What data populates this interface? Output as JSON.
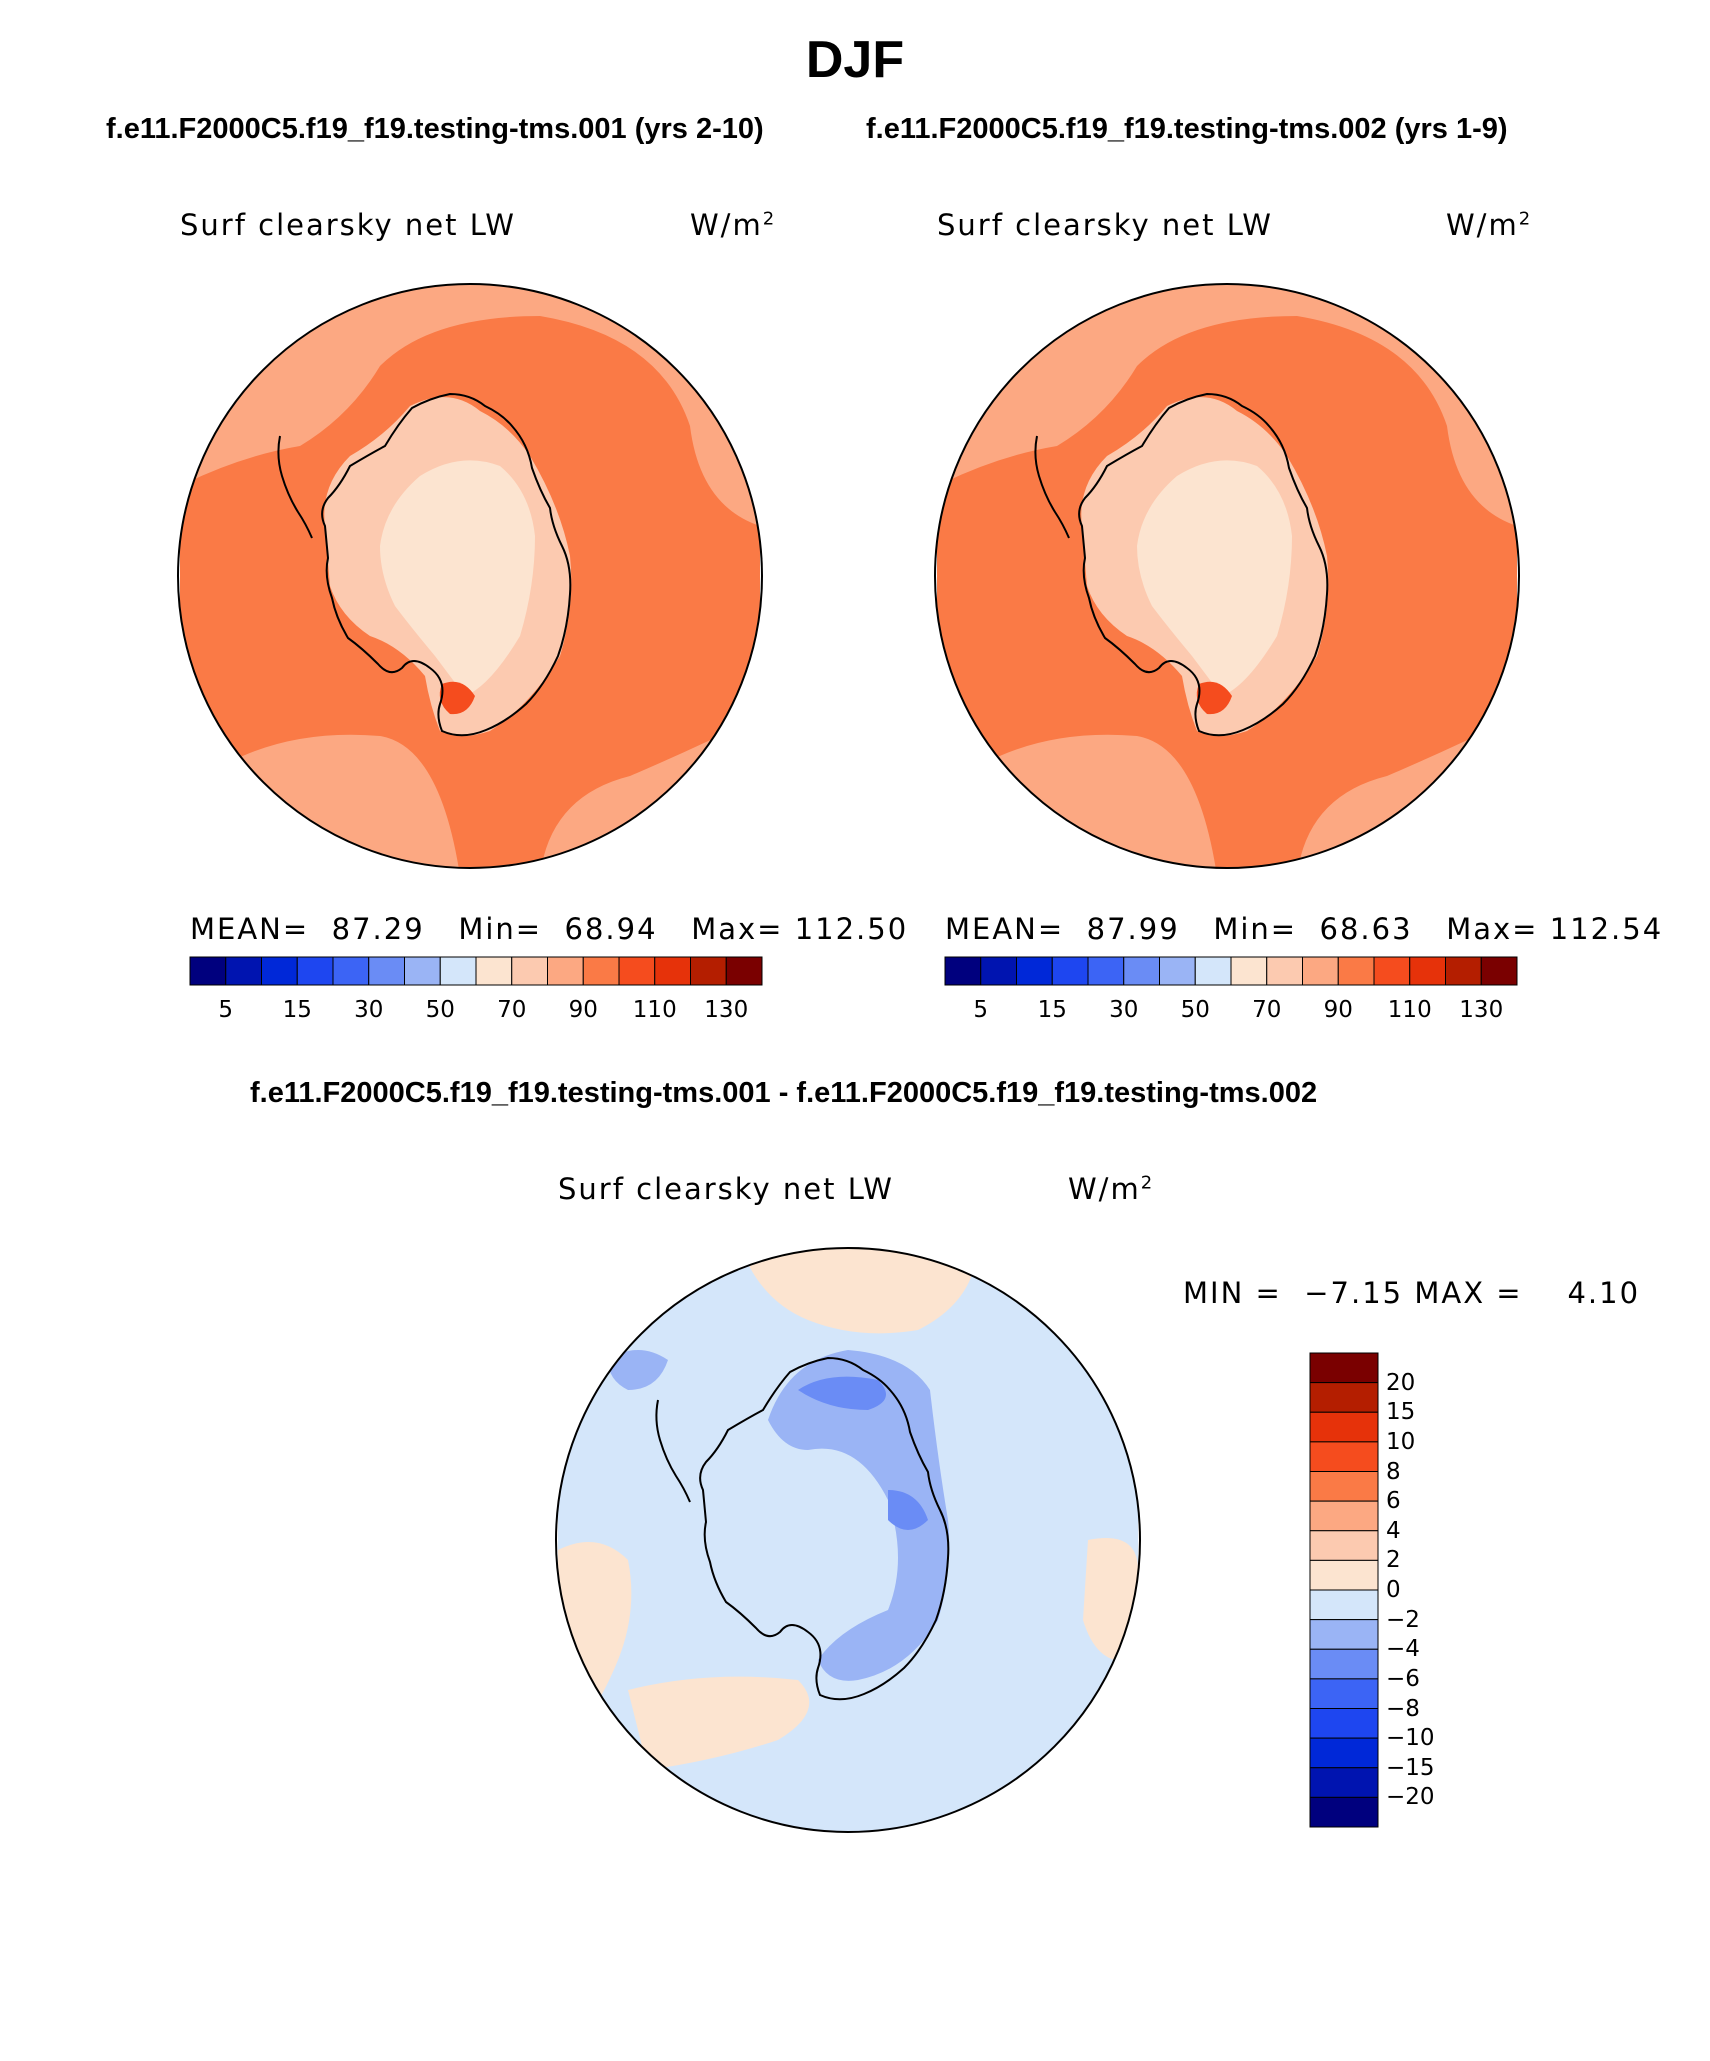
{
  "figure": {
    "title": "DJF",
    "case_left": "f.e11.F2000C5.f19_f19.testing-tms.001 (yrs 2-10)",
    "case_right": "f.e11.F2000C5.f19_f19.testing-tms.002 (yrs 1-9)",
    "diff_title": "f.e11.F2000C5.f19_f19.testing-tms.001 - f.e11.F2000C5.f19_f19.testing-tms.002"
  },
  "panels": [
    {
      "variable": "Surf clearsky net LW",
      "unit": "W/m",
      "unit_sup": "2",
      "stats": {
        "mean_label": "MEAN=",
        "mean": "87.29",
        "min_label": "Min=",
        "min": "68.94",
        "max_label": "Max=",
        "max": "112.50"
      }
    },
    {
      "variable": "Surf clearsky net LW",
      "unit": "W/m",
      "unit_sup": "2",
      "stats": {
        "mean_label": "MEAN=",
        "mean": "87.99",
        "min_label": "Min=",
        "min": "68.63",
        "max_label": "Max=",
        "max": "112.54"
      }
    },
    {
      "variable": "Surf clearsky net LW",
      "unit": "W/m",
      "unit_sup": "2",
      "stats": {
        "min_label": "MIN =",
        "min": "−7.15",
        "max_label": "MAX =",
        "max": "4.10"
      }
    }
  ],
  "colorbar_abs": {
    "colors": [
      "#00007e",
      "#0014b0",
      "#0028d8",
      "#1e46f0",
      "#3c64f5",
      "#6a8cf5",
      "#9ab4f5",
      "#d4e6fa",
      "#fce4d0",
      "#fccab0",
      "#fca882",
      "#fa7a46",
      "#f54c1e",
      "#e6320a",
      "#b41e00",
      "#7a0000"
    ],
    "tick_labels": [
      "5",
      "15",
      "30",
      "50",
      "70",
      "90",
      "110",
      "130"
    ]
  },
  "colorbar_diff": {
    "colors": [
      "#00007e",
      "#0014b0",
      "#0028d8",
      "#1e46f0",
      "#3c64f5",
      "#6a8cf5",
      "#9ab4f5",
      "#d4e6fa",
      "#fce4d0",
      "#fccab0",
      "#fca882",
      "#fa7a46",
      "#f54c1e",
      "#e6320a",
      "#b41e00",
      "#7a0000"
    ],
    "tick_labels": [
      "20",
      "15",
      "10",
      "8",
      "6",
      "4",
      "2",
      "0",
      "−2",
      "−4",
      "−6",
      "−8",
      "−10",
      "−15",
      "−20"
    ]
  },
  "map_colors": {
    "ocean_high": "#fa7a46",
    "ocean_mid": "#fca882",
    "land": "#fccab0",
    "land_light": "#fce4d0",
    "hot": "#f54c1e",
    "diff_bg": "#d4e6fa",
    "diff_pos": "#fce4d0",
    "diff_neg": "#9ab4f5",
    "diff_neg2": "#6a8cf5",
    "coast": "#000000"
  }
}
